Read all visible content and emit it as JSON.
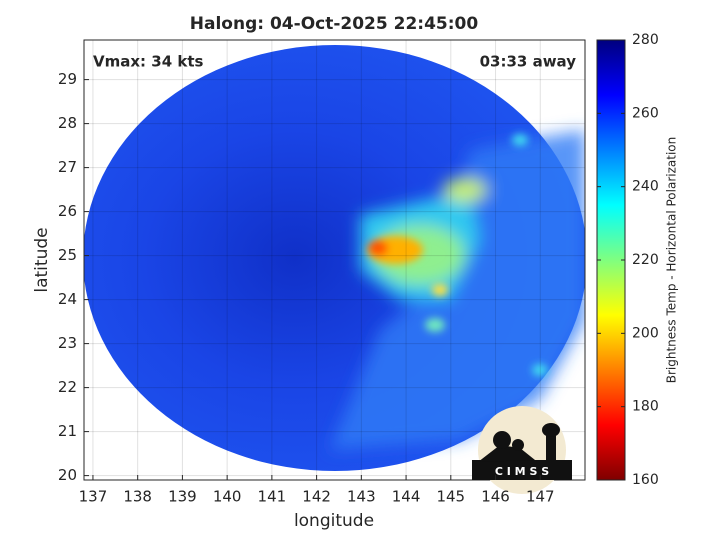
{
  "chart_data": {
    "type": "image",
    "title": "Halong: 04-Oct-2025 22:45:00",
    "xlabel": "longitude",
    "ylabel": "latitude",
    "annotations": [
      "Vmax: 34 kts",
      "03:33 away"
    ],
    "xlim": [
      136.8,
      148
    ],
    "xticks": [
      137,
      138,
      139,
      140,
      141,
      142,
      143,
      144,
      145,
      146,
      147
    ],
    "ylim": [
      19.9,
      29.9
    ],
    "yticks": [
      20,
      21,
      22,
      23,
      24,
      25,
      26,
      27,
      28,
      29
    ],
    "grid": true,
    "colorbar": {
      "label": "Brightness Temp - Horizontal Polarization",
      "lim": [
        160,
        280
      ],
      "ticks": [
        160,
        180,
        200,
        220,
        240,
        260,
        280
      ]
    }
  },
  "logo": {
    "text": "C I M S S"
  }
}
